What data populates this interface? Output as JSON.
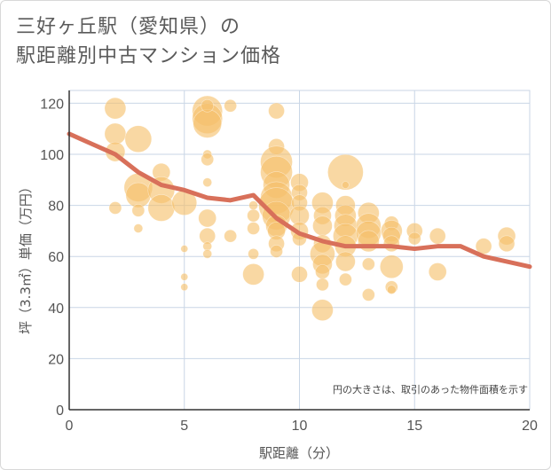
{
  "title_lines": [
    "三好ヶ丘駅（愛知県）の",
    "駅距離別中古マンション価格"
  ],
  "chart_data": {
    "type": "scatter",
    "title": "三好ヶ丘駅（愛知県）の駅距離別中古マンション価格",
    "xlabel": "駅距離（分）",
    "ylabel": "坪（3.3㎡）単価（万円）",
    "xlim": [
      0,
      20
    ],
    "ylim": [
      0,
      125
    ],
    "xticks": [
      0,
      5,
      10,
      15,
      20
    ],
    "yticks": [
      0,
      20,
      40,
      60,
      80,
      100,
      120
    ],
    "grid": true,
    "annotation": "円の大きさは、取引のあった物件面積を示す",
    "series": [
      {
        "type": "scatter",
        "color": "#f5c06a",
        "points": [
          {
            "x": 2,
            "y": 118,
            "s": 12
          },
          {
            "x": 2,
            "y": 108,
            "s": 12
          },
          {
            "x": 2,
            "y": 101,
            "s": 11
          },
          {
            "x": 2,
            "y": 79,
            "s": 7
          },
          {
            "x": 3,
            "y": 106,
            "s": 15
          },
          {
            "x": 3,
            "y": 87,
            "s": 16
          },
          {
            "x": 3,
            "y": 84,
            "s": 14
          },
          {
            "x": 3,
            "y": 78,
            "s": 7
          },
          {
            "x": 3,
            "y": 71,
            "s": 5
          },
          {
            "x": 4,
            "y": 93,
            "s": 10
          },
          {
            "x": 4,
            "y": 86,
            "s": 15
          },
          {
            "x": 4,
            "y": 79,
            "s": 15
          },
          {
            "x": 5,
            "y": 81,
            "s": 14
          },
          {
            "x": 5,
            "y": 63,
            "s": 4
          },
          {
            "x": 5,
            "y": 52,
            "s": 4
          },
          {
            "x": 5,
            "y": 48,
            "s": 4
          },
          {
            "x": 6,
            "y": 117,
            "s": 17
          },
          {
            "x": 6,
            "y": 114,
            "s": 17
          },
          {
            "x": 6,
            "y": 112,
            "s": 16
          },
          {
            "x": 6,
            "y": 119,
            "s": 7
          },
          {
            "x": 6,
            "y": 100,
            "s": 5
          },
          {
            "x": 6,
            "y": 98,
            "s": 7
          },
          {
            "x": 6,
            "y": 89,
            "s": 5
          },
          {
            "x": 6,
            "y": 75,
            "s": 10
          },
          {
            "x": 6,
            "y": 68,
            "s": 9
          },
          {
            "x": 6,
            "y": 64,
            "s": 5
          },
          {
            "x": 6,
            "y": 61,
            "s": 5
          },
          {
            "x": 7,
            "y": 119,
            "s": 7
          },
          {
            "x": 7,
            "y": 68,
            "s": 7
          },
          {
            "x": 8,
            "y": 80,
            "s": 5
          },
          {
            "x": 8,
            "y": 76,
            "s": 7
          },
          {
            "x": 8,
            "y": 71,
            "s": 7
          },
          {
            "x": 8,
            "y": 61,
            "s": 6
          },
          {
            "x": 8,
            "y": 53,
            "s": 12
          },
          {
            "x": 9,
            "y": 117,
            "s": 9
          },
          {
            "x": 9,
            "y": 103,
            "s": 9
          },
          {
            "x": 9,
            "y": 97,
            "s": 18
          },
          {
            "x": 9,
            "y": 93,
            "s": 18
          },
          {
            "x": 9,
            "y": 88,
            "s": 15
          },
          {
            "x": 9,
            "y": 83,
            "s": 18
          },
          {
            "x": 9,
            "y": 80,
            "s": 20
          },
          {
            "x": 9,
            "y": 76,
            "s": 16
          },
          {
            "x": 9,
            "y": 72,
            "s": 12
          },
          {
            "x": 9,
            "y": 70,
            "s": 10
          },
          {
            "x": 9,
            "y": 65,
            "s": 9
          },
          {
            "x": 9,
            "y": 62,
            "s": 7
          },
          {
            "x": 10,
            "y": 89,
            "s": 10
          },
          {
            "x": 10,
            "y": 85,
            "s": 9
          },
          {
            "x": 10,
            "y": 81,
            "s": 9
          },
          {
            "x": 10,
            "y": 76,
            "s": 11
          },
          {
            "x": 10,
            "y": 70,
            "s": 10
          },
          {
            "x": 10,
            "y": 67,
            "s": 8
          },
          {
            "x": 10,
            "y": 53,
            "s": 9
          },
          {
            "x": 11,
            "y": 81,
            "s": 12
          },
          {
            "x": 11,
            "y": 76,
            "s": 10
          },
          {
            "x": 11,
            "y": 72,
            "s": 11
          },
          {
            "x": 11,
            "y": 65,
            "s": 10
          },
          {
            "x": 11,
            "y": 61,
            "s": 14
          },
          {
            "x": 11,
            "y": 57,
            "s": 11
          },
          {
            "x": 11,
            "y": 54,
            "s": 8
          },
          {
            "x": 11,
            "y": 49,
            "s": 7
          },
          {
            "x": 11,
            "y": 39,
            "s": 12
          },
          {
            "x": 12,
            "y": 93,
            "s": 20
          },
          {
            "x": 12,
            "y": 88,
            "s": 4
          },
          {
            "x": 12,
            "y": 80,
            "s": 11
          },
          {
            "x": 12,
            "y": 76,
            "s": 12
          },
          {
            "x": 12,
            "y": 72,
            "s": 13
          },
          {
            "x": 12,
            "y": 68,
            "s": 14
          },
          {
            "x": 12,
            "y": 64,
            "s": 12
          },
          {
            "x": 12,
            "y": 58,
            "s": 11
          },
          {
            "x": 12,
            "y": 51,
            "s": 7
          },
          {
            "x": 13,
            "y": 77,
            "s": 12
          },
          {
            "x": 13,
            "y": 72,
            "s": 14
          },
          {
            "x": 13,
            "y": 69,
            "s": 14
          },
          {
            "x": 13,
            "y": 66,
            "s": 12
          },
          {
            "x": 13,
            "y": 57,
            "s": 7
          },
          {
            "x": 13,
            "y": 45,
            "s": 7
          },
          {
            "x": 14,
            "y": 73,
            "s": 8
          },
          {
            "x": 14,
            "y": 70,
            "s": 12
          },
          {
            "x": 14,
            "y": 68,
            "s": 10
          },
          {
            "x": 14,
            "y": 65,
            "s": 9
          },
          {
            "x": 14,
            "y": 56,
            "s": 13
          },
          {
            "x": 14,
            "y": 48,
            "s": 7
          },
          {
            "x": 14,
            "y": 47,
            "s": 5
          },
          {
            "x": 15,
            "y": 70,
            "s": 9
          },
          {
            "x": 15,
            "y": 67,
            "s": 7
          },
          {
            "x": 16,
            "y": 68,
            "s": 9
          },
          {
            "x": 16,
            "y": 54,
            "s": 10
          },
          {
            "x": 18,
            "y": 64,
            "s": 9
          },
          {
            "x": 19,
            "y": 68,
            "s": 10
          },
          {
            "x": 19,
            "y": 65,
            "s": 9
          }
        ]
      },
      {
        "type": "line",
        "color": "#d8705a",
        "x": [
          0,
          1,
          2,
          3,
          4,
          5,
          6,
          7,
          8,
          9,
          10,
          11,
          12,
          13,
          14,
          15,
          16,
          17,
          18,
          19,
          20
        ],
        "y": [
          108,
          104,
          100,
          93,
          88,
          86,
          83,
          82,
          84,
          75,
          69,
          66,
          64,
          64,
          64,
          63,
          64,
          64,
          60,
          58,
          56
        ]
      }
    ]
  }
}
